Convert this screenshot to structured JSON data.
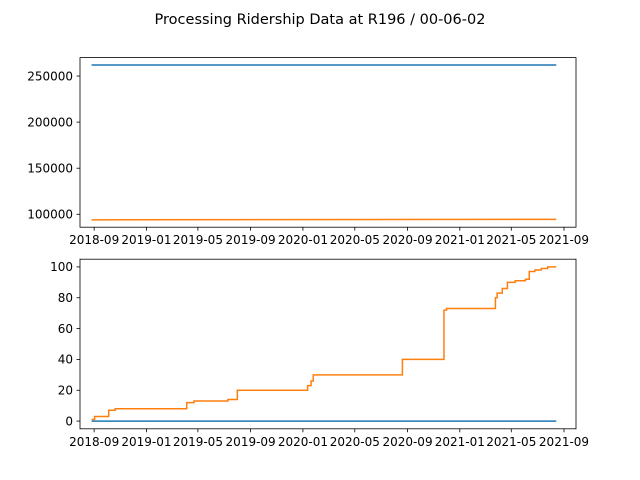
{
  "figure": {
    "title": "Processing Ridership Data at R196 / 00-06-02"
  },
  "chart_data": [
    {
      "type": "line",
      "title": "",
      "xlabel": "",
      "ylabel": "",
      "xlim": [
        "2018-07-30",
        "2021-09-29"
      ],
      "ylim": [
        86000,
        270000
      ],
      "x_ticks": [
        "2018-09",
        "2019-01",
        "2019-05",
        "2019-09",
        "2020-01",
        "2020-05",
        "2020-09",
        "2021-01",
        "2021-05",
        "2021-09"
      ],
      "y_ticks": [
        100000,
        150000,
        200000,
        250000
      ],
      "y_tick_labels": [
        "100000",
        "150000",
        "200000",
        "250000"
      ],
      "grid": false,
      "series": [
        {
          "color": "#1f77b4",
          "x": [
            "2018-08-26",
            "2021-08-14"
          ],
          "y": [
            262000,
            262000
          ]
        },
        {
          "color": "#ff7f0e",
          "x": [
            "2018-08-26",
            "2021-08-14"
          ],
          "y": [
            94000,
            94500
          ]
        }
      ]
    },
    {
      "type": "line",
      "title": "",
      "xlabel": "",
      "ylabel": "",
      "xlim": [
        "2018-07-30",
        "2021-09-29"
      ],
      "ylim": [
        -5,
        105
      ],
      "x_ticks": [
        "2018-09",
        "2019-01",
        "2019-05",
        "2019-09",
        "2020-01",
        "2020-05",
        "2020-09",
        "2021-01",
        "2021-05",
        "2021-09"
      ],
      "y_ticks": [
        0,
        20,
        40,
        60,
        80,
        100
      ],
      "y_tick_labels": [
        "0",
        "20",
        "40",
        "60",
        "80",
        "100"
      ],
      "grid": false,
      "series": [
        {
          "color": "#1f77b4",
          "x": [
            "2018-08-26",
            "2021-08-14"
          ],
          "y": [
            0,
            0
          ]
        },
        {
          "color": "#ff7f0e",
          "step": true,
          "x": [
            "2018-08-26",
            "2018-09-02",
            "2018-10-05",
            "2018-10-20",
            "2019-04-05",
            "2019-04-22",
            "2019-07-10",
            "2019-08-01",
            "2020-01-12",
            "2020-01-20",
            "2020-01-25",
            "2020-02-01",
            "2020-08-20",
            "2020-11-25",
            "2020-12-01",
            "2021-03-25",
            "2021-03-29",
            "2021-04-10",
            "2021-04-22",
            "2021-05-10",
            "2021-06-03",
            "2021-06-12",
            "2021-06-25",
            "2021-07-10",
            "2021-07-25",
            "2021-08-14"
          ],
          "y": [
            1,
            3,
            7,
            8,
            12,
            13,
            14,
            20,
            23,
            26,
            30,
            30,
            40,
            72,
            73,
            80,
            83,
            86,
            90,
            91,
            92,
            97,
            98,
            99,
            100,
            100
          ]
        }
      ]
    }
  ]
}
